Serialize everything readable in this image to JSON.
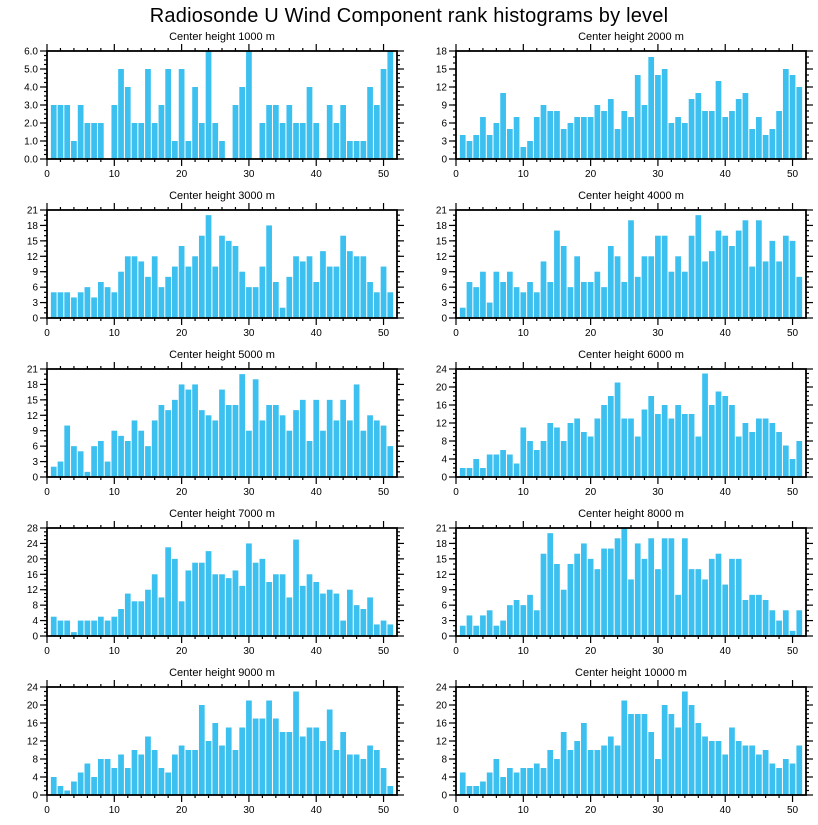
{
  "page_title": "Radiosonde U Wind Component rank histograms by level",
  "colors": {
    "bar_fill": "#3CC0F0",
    "axis": "#000000",
    "background": "#FFFFFF",
    "tick_label": "#000000"
  },
  "chart_data": [
    {
      "type": "bar",
      "title": "Center height 1000 m",
      "xlim": [
        0,
        52
      ],
      "ylim": [
        0,
        6
      ],
      "ytick_step": 1,
      "ytick_decimals": 1,
      "xtick_major": 10,
      "xtick_minor": 2,
      "x_first": 1,
      "grid": false,
      "legend": null,
      "values": [
        3,
        3,
        3,
        1,
        3,
        2,
        2,
        2,
        0,
        3,
        5,
        4,
        2,
        2,
        5,
        2,
        3,
        5,
        1,
        5,
        1,
        4,
        2,
        6,
        2,
        1,
        0,
        3,
        4,
        6,
        0,
        2,
        3,
        3,
        2,
        3,
        2,
        2,
        4,
        2,
        0,
        3,
        2,
        3,
        1,
        1,
        1,
        4,
        3,
        5,
        6
      ]
    },
    {
      "type": "bar",
      "title": "Center height 2000 m",
      "xlim": [
        0,
        52
      ],
      "ylim": [
        0,
        18
      ],
      "ytick_step": 3,
      "ytick_decimals": 0,
      "xtick_major": 10,
      "xtick_minor": 2,
      "x_first": 1,
      "grid": false,
      "legend": null,
      "values": [
        4,
        3,
        4,
        7,
        4,
        6,
        11,
        5,
        7,
        2,
        3,
        7,
        9,
        8,
        8,
        5,
        6,
        7,
        7,
        7,
        9,
        8,
        10,
        5,
        8,
        7,
        14,
        9,
        17,
        14,
        15,
        6,
        7,
        6,
        10,
        11,
        8,
        8,
        13,
        7,
        8,
        10,
        11,
        5,
        7,
        4,
        5,
        8,
        15,
        14,
        12
      ]
    },
    {
      "type": "bar",
      "title": "Center height 3000 m",
      "xlim": [
        0,
        52
      ],
      "ylim": [
        0,
        21
      ],
      "ytick_step": 3,
      "ytick_decimals": 0,
      "xtick_major": 10,
      "xtick_minor": 2,
      "x_first": 1,
      "grid": false,
      "legend": null,
      "values": [
        5,
        5,
        5,
        4,
        5,
        6,
        4,
        7,
        6,
        5,
        9,
        12,
        12,
        11,
        8,
        12,
        6,
        8,
        10,
        14,
        10,
        12,
        16,
        20,
        10,
        16,
        15,
        14,
        9,
        6,
        6,
        10,
        18,
        7,
        2,
        8,
        12,
        11,
        12,
        7,
        13,
        10,
        10,
        16,
        13,
        12,
        12,
        7,
        5,
        10,
        5
      ]
    },
    {
      "type": "bar",
      "title": "Center height 4000 m",
      "xlim": [
        0,
        52
      ],
      "ylim": [
        0,
        21
      ],
      "ytick_step": 3,
      "ytick_decimals": 0,
      "xtick_major": 10,
      "xtick_minor": 2,
      "x_first": 1,
      "grid": false,
      "legend": null,
      "values": [
        2,
        7,
        6,
        9,
        3,
        9,
        7,
        9,
        6,
        5,
        7,
        5,
        11,
        7,
        17,
        14,
        6,
        12,
        7,
        7,
        9,
        6,
        14,
        12,
        7,
        19,
        8,
        12,
        12,
        16,
        16,
        9,
        12,
        9,
        16,
        20,
        11,
        13,
        17,
        16,
        14,
        17,
        19,
        10,
        19,
        11,
        15,
        11,
        16,
        15,
        8
      ]
    },
    {
      "type": "bar",
      "title": "Center height 5000 m",
      "xlim": [
        0,
        52
      ],
      "ylim": [
        0,
        21
      ],
      "ytick_step": 3,
      "ytick_decimals": 0,
      "xtick_major": 10,
      "xtick_minor": 2,
      "x_first": 1,
      "grid": false,
      "legend": null,
      "values": [
        2,
        3,
        10,
        6,
        5,
        1,
        6,
        7,
        3,
        9,
        8,
        7,
        11,
        9,
        6,
        11,
        14,
        13,
        15,
        18,
        17,
        18,
        13,
        12,
        11,
        17,
        14,
        14,
        20,
        9,
        19,
        11,
        14,
        14,
        12,
        9,
        13,
        15,
        7,
        15,
        9,
        15,
        11,
        15,
        11,
        18,
        9,
        12,
        11,
        10,
        6
      ]
    },
    {
      "type": "bar",
      "title": "Center height 6000 m",
      "xlim": [
        0,
        52
      ],
      "ylim": [
        0,
        24
      ],
      "ytick_step": 4,
      "ytick_decimals": 0,
      "xtick_major": 10,
      "xtick_minor": 2,
      "x_first": 1,
      "grid": false,
      "legend": null,
      "values": [
        2,
        2,
        4,
        2,
        5,
        5,
        6,
        5,
        3,
        11,
        8,
        6,
        8,
        12,
        11,
        8,
        12,
        13,
        10,
        9,
        13,
        16,
        18,
        21,
        13,
        13,
        9,
        15,
        18,
        14,
        16,
        13,
        16,
        14,
        14,
        9,
        23,
        16,
        19,
        18,
        16,
        9,
        12,
        10,
        13,
        13,
        12,
        10,
        7,
        4,
        8
      ]
    },
    {
      "type": "bar",
      "title": "Center height 7000 m",
      "xlim": [
        0,
        52
      ],
      "ylim": [
        0,
        28
      ],
      "ytick_step": 4,
      "ytick_decimals": 0,
      "xtick_major": 10,
      "xtick_minor": 2,
      "x_first": 1,
      "grid": false,
      "legend": null,
      "values": [
        5,
        4,
        4,
        1,
        4,
        4,
        4,
        5,
        4,
        5,
        7,
        11,
        9,
        9,
        12,
        16,
        10,
        23,
        20,
        9,
        17,
        19,
        19,
        22,
        16,
        16,
        15,
        17,
        13,
        24,
        19,
        20,
        14,
        16,
        16,
        10,
        25,
        13,
        16,
        14,
        11,
        12,
        11,
        4,
        12,
        8,
        7,
        10,
        3,
        4,
        3
      ]
    },
    {
      "type": "bar",
      "title": "Center height 8000 m",
      "xlim": [
        0,
        52
      ],
      "ylim": [
        0,
        21
      ],
      "ytick_step": 3,
      "ytick_decimals": 0,
      "xtick_major": 10,
      "xtick_minor": 2,
      "x_first": 1,
      "grid": false,
      "legend": null,
      "values": [
        2,
        4,
        2,
        4,
        5,
        2,
        3,
        6,
        7,
        6,
        8,
        5,
        16,
        20,
        14,
        9,
        14,
        16,
        18,
        15,
        13,
        17,
        17,
        19,
        21,
        11,
        18,
        15,
        19,
        13,
        19,
        19,
        8,
        19,
        13,
        13,
        11,
        15,
        16,
        10,
        15,
        15,
        7,
        8,
        8,
        7,
        5,
        3,
        5,
        1,
        5
      ]
    },
    {
      "type": "bar",
      "title": "Center height 9000 m",
      "xlim": [
        0,
        52
      ],
      "ylim": [
        0,
        24
      ],
      "ytick_step": 4,
      "ytick_decimals": 0,
      "xtick_major": 10,
      "xtick_minor": 2,
      "x_first": 1,
      "grid": false,
      "legend": null,
      "values": [
        4,
        2,
        1,
        3,
        5,
        7,
        4,
        8,
        8,
        6,
        9,
        6,
        10,
        9,
        13,
        10,
        6,
        5,
        9,
        11,
        10,
        10,
        20,
        12,
        16,
        11,
        15,
        10,
        15,
        21,
        17,
        17,
        21,
        17,
        14,
        14,
        23,
        13,
        15,
        15,
        12,
        19,
        10,
        14,
        9,
        9,
        8,
        11,
        10,
        6,
        2
      ]
    },
    {
      "type": "bar",
      "title": "Center height 10000 m",
      "xlim": [
        0,
        52
      ],
      "ylim": [
        0,
        24
      ],
      "ytick_step": 4,
      "ytick_decimals": 0,
      "xtick_major": 10,
      "xtick_minor": 2,
      "x_first": 1,
      "grid": false,
      "legend": null,
      "values": [
        5,
        2,
        2,
        3,
        5,
        8,
        4,
        6,
        5,
        6,
        6,
        7,
        6,
        10,
        8,
        14,
        10,
        12,
        16,
        10,
        10,
        11,
        13,
        11,
        21,
        18,
        18,
        18,
        14,
        8,
        20,
        18,
        15,
        23,
        20,
        16,
        13,
        12,
        12,
        9,
        15,
        12,
        11,
        11,
        9,
        10,
        7,
        6,
        8,
        7,
        11
      ]
    }
  ]
}
